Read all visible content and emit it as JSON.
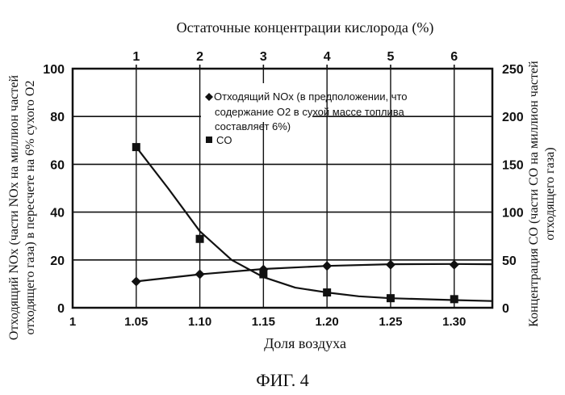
{
  "chart_data": {
    "type": "line",
    "title": "ФИГ. 4",
    "top_axis_title": "Остаточные концентрации кислорода (%)",
    "top_ticks": [
      "1",
      "2",
      "3",
      "4",
      "5",
      "6"
    ],
    "xlabel": "Доля воздуха",
    "x_ticks": [
      "1",
      "1.05",
      "1.10",
      "1.15",
      "1.20",
      "1.25",
      "1.30"
    ],
    "xlim": [
      1.0,
      1.33
    ],
    "ylabel_left_line1": "Отходящий NOx (части NOx на миллион частей",
    "ylabel_left_line2": "отходящего газа) в пересчете на 6% сухого O2",
    "ylim_left": [
      0,
      100
    ],
    "y_ticks_left": [
      "0",
      "20",
      "40",
      "60",
      "80",
      "100"
    ],
    "ylabel_right_line1": "Концентрация CO (части CO на миллион частей",
    "ylabel_right_line2": "отходящего газа)",
    "ylim_right": [
      0,
      250
    ],
    "y_ticks_right": [
      "0",
      "50",
      "100",
      "150",
      "200",
      "250"
    ],
    "grid": true,
    "legend": {
      "nox_line1": "Отходящий NOx (в предположении, что",
      "nox_line2": "содержание O2 в сухой массе топлива",
      "nox_line3": "составляет 6%)",
      "co": "CO",
      "placement": "upper-middle"
    },
    "series": [
      {
        "name": "Отходящий NOx",
        "axis": "left",
        "marker": "diamond",
        "x": [
          1.05,
          1.1,
          1.15,
          1.2,
          1.25,
          1.3
        ],
        "values": [
          11,
          14,
          16,
          17.5,
          18,
          18
        ],
        "curve": [
          [
            1.05,
            11
          ],
          [
            1.1,
            14
          ],
          [
            1.15,
            16.2
          ],
          [
            1.2,
            17.5
          ],
          [
            1.25,
            18.2
          ],
          [
            1.3,
            18.3
          ],
          [
            1.33,
            18.2
          ]
        ]
      },
      {
        "name": "CO",
        "axis": "right",
        "marker": "square",
        "x": [
          1.05,
          1.1,
          1.15,
          1.2,
          1.25,
          1.3
        ],
        "values": [
          168,
          72,
          35,
          16,
          10,
          9
        ],
        "curve": [
          [
            1.05,
            168
          ],
          [
            1.075,
            125
          ],
          [
            1.1,
            80
          ],
          [
            1.125,
            50
          ],
          [
            1.15,
            32
          ],
          [
            1.175,
            21
          ],
          [
            1.2,
            16
          ],
          [
            1.225,
            12
          ],
          [
            1.25,
            10
          ],
          [
            1.3,
            8
          ],
          [
            1.33,
            7
          ]
        ]
      }
    ]
  }
}
